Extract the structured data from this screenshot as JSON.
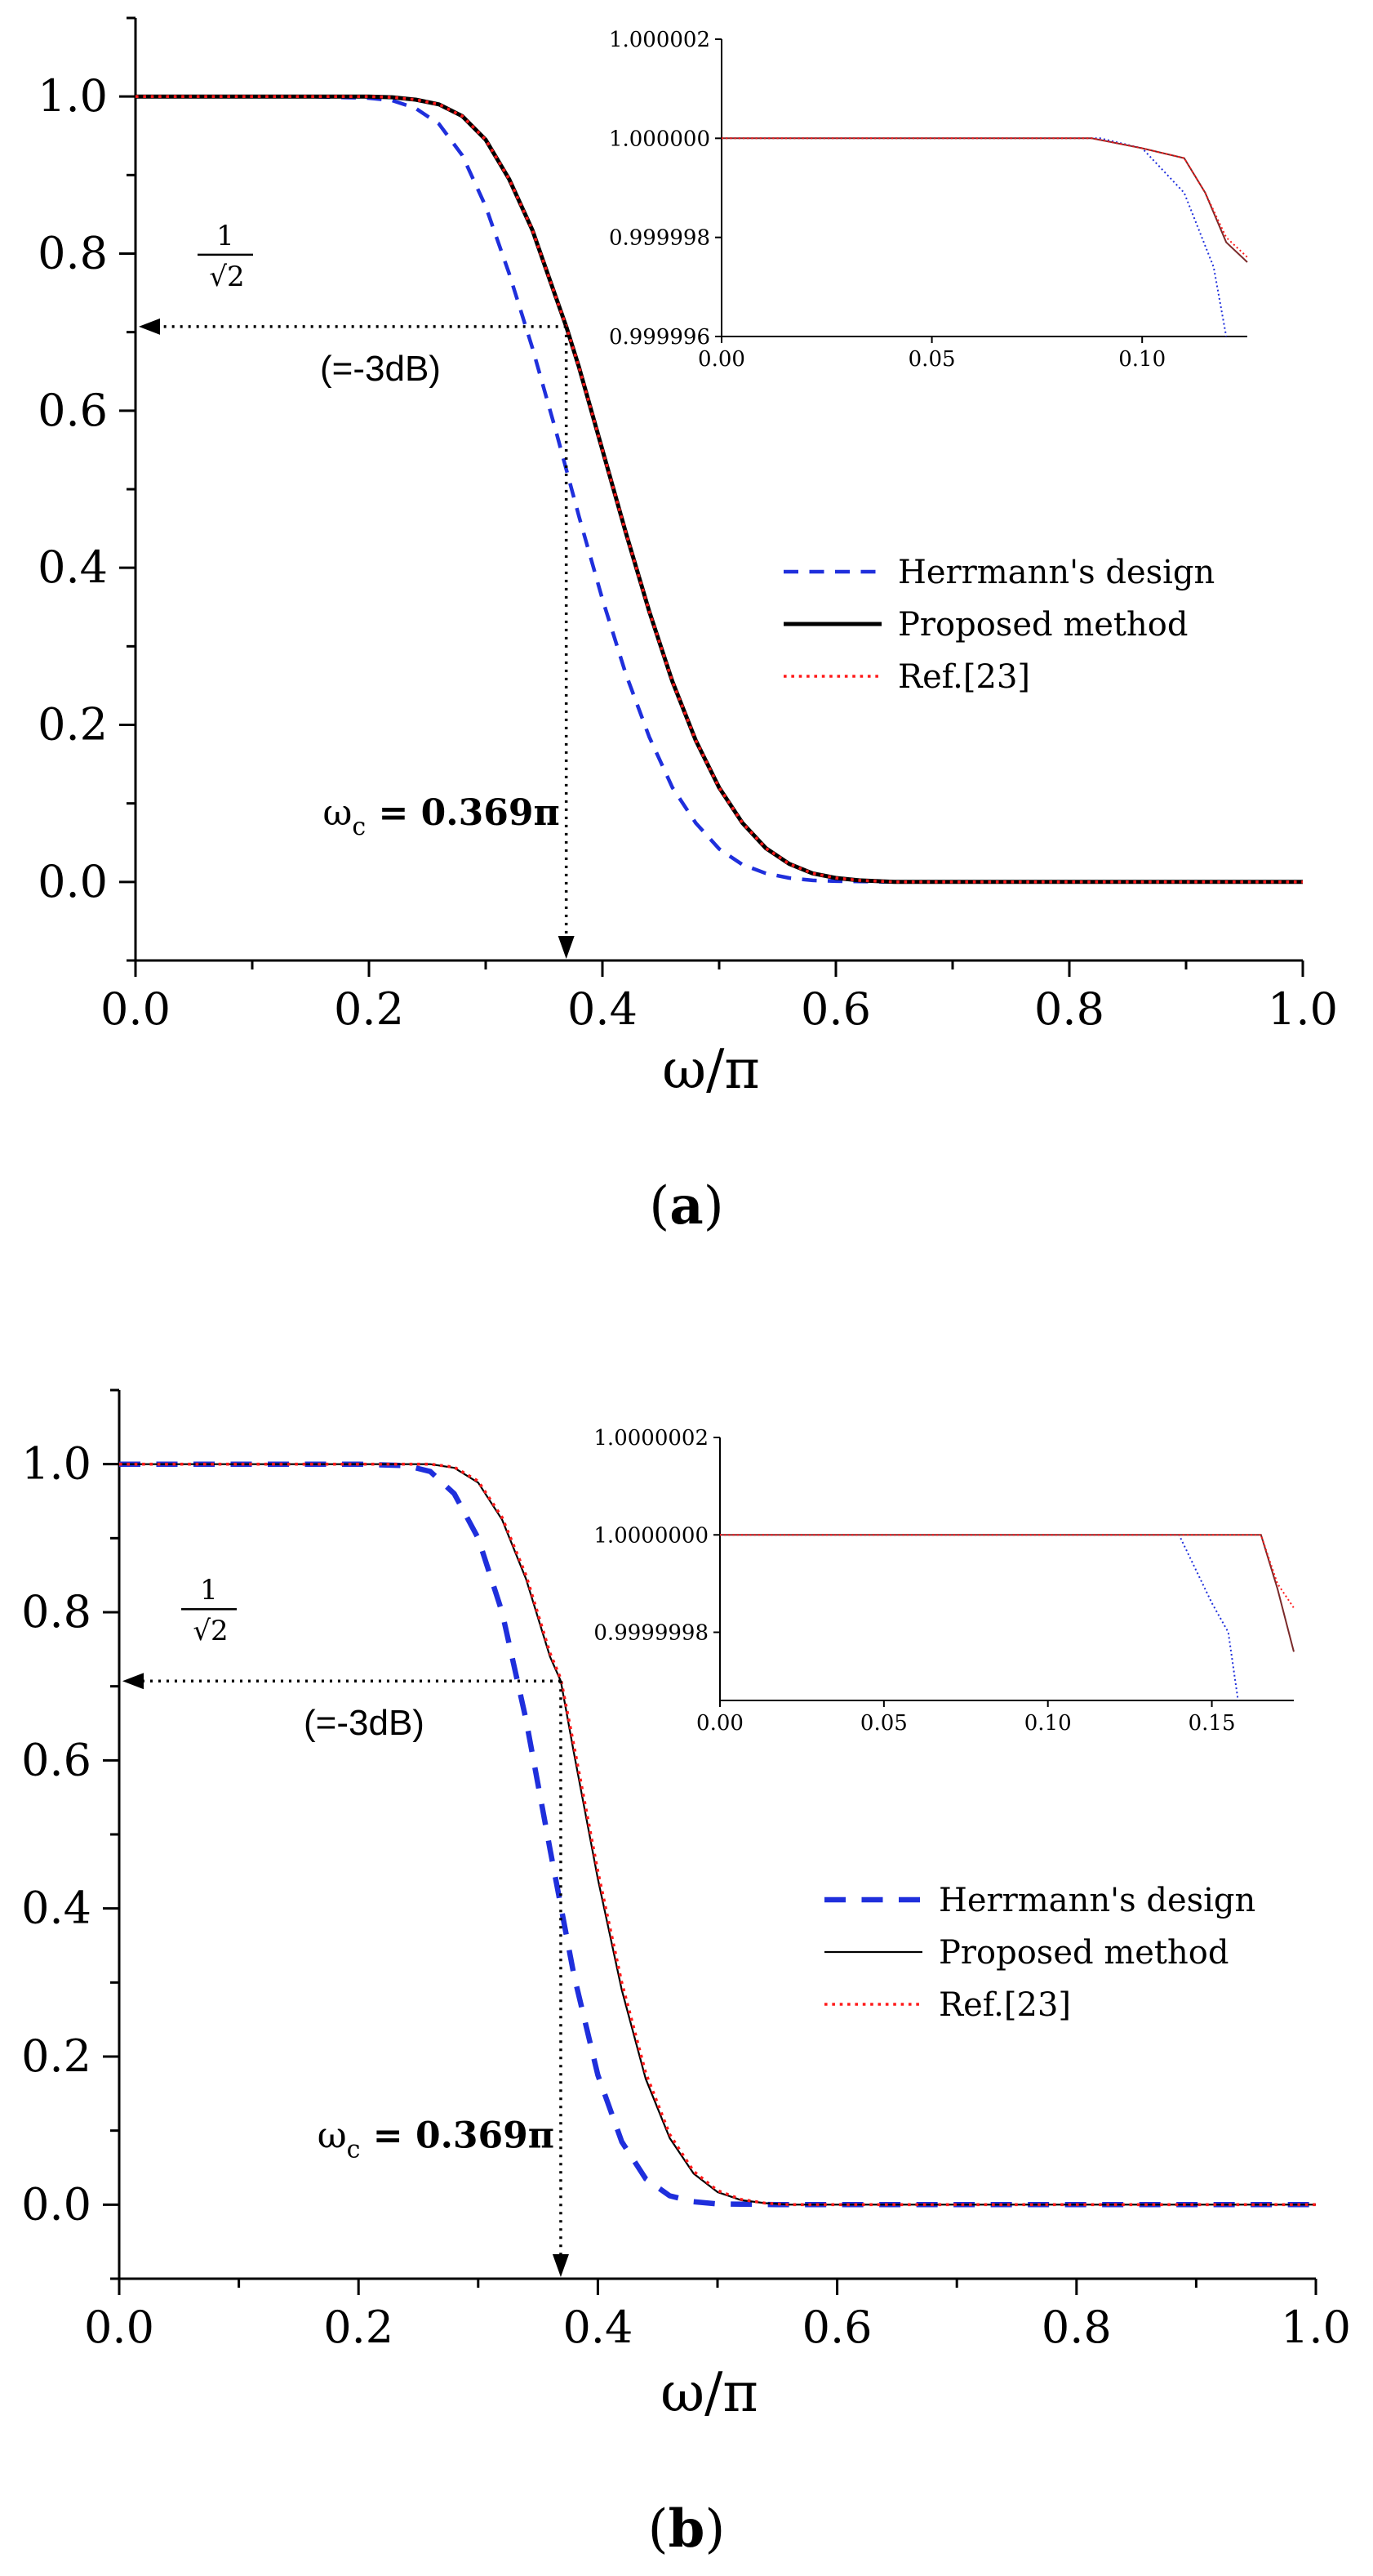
{
  "chart_data": [
    {
      "panel": "a",
      "caption": "a",
      "type": "line",
      "xlabel": "ω/π",
      "ylabel": "",
      "xlim": [
        0,
        1.0
      ],
      "ylim": [
        -0.1,
        1.1
      ],
      "xticks": [
        0.0,
        0.2,
        0.4,
        0.6,
        0.8,
        1.0
      ],
      "yticks": [
        0.0,
        0.2,
        0.4,
        0.6,
        0.8,
        1.0
      ],
      "xtick_labels": [
        "0.0",
        "0.2",
        "0.4",
        "0.6",
        "0.8",
        "1.0"
      ],
      "ytick_labels": [
        "0.0",
        "0.2",
        "0.4",
        "0.6",
        "0.8",
        "1.0"
      ],
      "annotations": {
        "level": 0.7071,
        "cutoff": 0.369,
        "frac_num": "1",
        "frac_den": "√2",
        "db_label": "(=-3dB)",
        "omega_symbol": "ω",
        "omega_sub": "c",
        "omega_value": " = 0.369π"
      },
      "series": [
        {
          "name": "Herrmann's design",
          "color": "#1f2fdc",
          "dash": "dashed",
          "legend_label": "Herrmann's design",
          "x": [
            0,
            0.15,
            0.2,
            0.22,
            0.24,
            0.26,
            0.28,
            0.3,
            0.32,
            0.34,
            0.36,
            0.38,
            0.4,
            0.42,
            0.44,
            0.46,
            0.48,
            0.5,
            0.52,
            0.54,
            0.56,
            0.58,
            0.6,
            0.65,
            0.7,
            1.0
          ],
          "y": [
            1.0,
            1.0,
            0.998,
            0.995,
            0.985,
            0.965,
            0.925,
            0.86,
            0.775,
            0.68,
            0.575,
            0.465,
            0.36,
            0.265,
            0.185,
            0.12,
            0.075,
            0.042,
            0.022,
            0.011,
            0.005,
            0.002,
            0.001,
            0.0,
            0.0,
            0.0
          ]
        },
        {
          "name": "Proposed method",
          "color": "#000000",
          "dash": "solid",
          "legend_label": "Proposed method",
          "x": [
            0,
            0.2,
            0.22,
            0.24,
            0.26,
            0.28,
            0.3,
            0.32,
            0.34,
            0.36,
            0.369,
            0.38,
            0.4,
            0.42,
            0.44,
            0.46,
            0.48,
            0.5,
            0.52,
            0.54,
            0.56,
            0.58,
            0.6,
            0.62,
            0.65,
            0.7,
            1.0
          ],
          "y": [
            1.0,
            1.0,
            0.999,
            0.996,
            0.99,
            0.975,
            0.945,
            0.895,
            0.83,
            0.745,
            0.707,
            0.655,
            0.55,
            0.445,
            0.345,
            0.255,
            0.18,
            0.12,
            0.075,
            0.043,
            0.023,
            0.011,
            0.005,
            0.002,
            0.0,
            0.0,
            0.0
          ]
        },
        {
          "name": "Ref.[23]",
          "color": "#ff1a1a",
          "dash": "dotted",
          "legend_label": "Ref.[23]",
          "x": [
            0,
            0.2,
            0.22,
            0.24,
            0.26,
            0.28,
            0.3,
            0.32,
            0.34,
            0.36,
            0.369,
            0.38,
            0.4,
            0.42,
            0.44,
            0.46,
            0.48,
            0.5,
            0.52,
            0.54,
            0.56,
            0.58,
            0.6,
            0.62,
            0.65,
            0.7,
            1.0
          ],
          "y": [
            1.0,
            1.0,
            0.999,
            0.996,
            0.99,
            0.975,
            0.945,
            0.895,
            0.83,
            0.745,
            0.707,
            0.655,
            0.55,
            0.445,
            0.345,
            0.255,
            0.18,
            0.12,
            0.075,
            0.043,
            0.023,
            0.011,
            0.005,
            0.002,
            0.0,
            0.0,
            0.0
          ]
        }
      ],
      "inset": {
        "xlim": [
          0,
          0.125
        ],
        "ylim": [
          0.999996,
          1.000002
        ],
        "xticks": [
          0.0,
          0.05,
          0.1
        ],
        "xtick_labels": [
          "0.00",
          "0.05",
          "0.10"
        ],
        "yticks": [
          0.999996,
          0.999998,
          1.0,
          1.000002
        ],
        "ytick_labels": [
          "0.999996",
          "0.999998",
          "1.000000",
          "1.000002"
        ],
        "series": [
          {
            "name": "Herrmann's design",
            "color": "#1f2fdc",
            "dash": "dotted",
            "x": [
              0,
              0.09,
              0.1,
              0.11,
              0.117,
              0.12
            ],
            "y": [
              1.0,
              1.0,
              0.9999998,
              0.9999989,
              0.9999974,
              0.999996
            ]
          },
          {
            "name": "Proposed method",
            "color": "#7a2a2a",
            "dash": "solid",
            "x": [
              0,
              0.088,
              0.1,
              0.11,
              0.115,
              0.12,
              0.125
            ],
            "y": [
              1.0,
              1.0,
              0.9999998,
              0.9999996,
              0.9999989,
              0.9999979,
              0.9999975
            ]
          },
          {
            "name": "Ref.[23]",
            "color": "#ff1a1a",
            "dash": "dotted",
            "x": [
              0,
              0.088,
              0.1,
              0.11,
              0.115,
              0.12,
              0.125
            ],
            "y": [
              1.0,
              1.0,
              0.9999998,
              0.9999996,
              0.9999989,
              0.999998,
              0.9999976
            ]
          }
        ]
      }
    },
    {
      "panel": "b",
      "caption": "b",
      "type": "line",
      "xlabel": "ω/π",
      "ylabel": "",
      "xlim": [
        0,
        1.0
      ],
      "ylim": [
        -0.1,
        1.1
      ],
      "xticks": [
        0.0,
        0.2,
        0.4,
        0.6,
        0.8,
        1.0
      ],
      "yticks": [
        0.0,
        0.2,
        0.4,
        0.6,
        0.8,
        1.0
      ],
      "xtick_labels": [
        "0.0",
        "0.2",
        "0.4",
        "0.6",
        "0.8",
        "1.0"
      ],
      "ytick_labels": [
        "0.0",
        "0.2",
        "0.4",
        "0.6",
        "0.8",
        "1.0"
      ],
      "annotations": {
        "level": 0.7071,
        "cutoff": 0.369,
        "frac_num": "1",
        "frac_den": "√2",
        "db_label": "(=-3dB)",
        "omega_symbol": "ω",
        "omega_sub": "c",
        "omega_value": " = 0.369π"
      },
      "series": [
        {
          "name": "Herrmann's design",
          "color": "#1f2fdc",
          "dash": "dashed",
          "legend_label": "Herrmann's design",
          "x": [
            0,
            0.2,
            0.24,
            0.26,
            0.28,
            0.3,
            0.32,
            0.34,
            0.36,
            0.38,
            0.4,
            0.42,
            0.44,
            0.46,
            0.48,
            0.5,
            0.55,
            1.0
          ],
          "y": [
            1.0,
            1.0,
            0.998,
            0.99,
            0.96,
            0.9,
            0.8,
            0.655,
            0.48,
            0.31,
            0.175,
            0.085,
            0.035,
            0.012,
            0.004,
            0.001,
            0.0,
            0.0
          ]
        },
        {
          "name": "Proposed method",
          "color": "#000000",
          "dash": "solid",
          "legend_label": "Proposed method",
          "x": [
            0,
            0.26,
            0.28,
            0.3,
            0.32,
            0.34,
            0.36,
            0.369,
            0.38,
            0.4,
            0.42,
            0.44,
            0.46,
            0.48,
            0.5,
            0.52,
            0.54,
            0.56,
            0.6,
            1.0
          ],
          "y": [
            1.0,
            1.0,
            0.995,
            0.975,
            0.925,
            0.845,
            0.74,
            0.707,
            0.61,
            0.44,
            0.29,
            0.17,
            0.09,
            0.042,
            0.017,
            0.006,
            0.002,
            0.0,
            0.0,
            0.0
          ]
        },
        {
          "name": "Ref.[23]",
          "color": "#ff1a1a",
          "dash": "dotted",
          "legend_label": "Ref.[23]",
          "x": [
            0,
            0.26,
            0.28,
            0.3,
            0.32,
            0.34,
            0.36,
            0.369,
            0.38,
            0.4,
            0.42,
            0.44,
            0.46,
            0.48,
            0.5,
            0.52,
            0.54,
            0.56,
            0.6,
            1.0
          ],
          "y": [
            1.0,
            1.0,
            0.996,
            0.977,
            0.928,
            0.85,
            0.745,
            0.71,
            0.62,
            0.45,
            0.3,
            0.178,
            0.095,
            0.045,
            0.019,
            0.007,
            0.002,
            0.0,
            0.0,
            0.0
          ]
        }
      ],
      "inset": {
        "xlim": [
          0,
          0.175
        ],
        "ylim": [
          0.99999966,
          1.0000002
        ],
        "xticks": [
          0.0,
          0.05,
          0.1,
          0.15
        ],
        "xtick_labels": [
          "0.00",
          "0.05",
          "0.10",
          "0.15"
        ],
        "yticks": [
          0.9999998,
          1.0,
          1.0000002
        ],
        "ytick_labels": [
          "0.9999998",
          "1.0000000",
          "1.0000002"
        ],
        "series": [
          {
            "name": "Herrmann's design",
            "color": "#1f2fdc",
            "dash": "dotted",
            "x": [
              0,
              0.14,
              0.145,
              0.15,
              0.155,
              0.158
            ],
            "y": [
              1.0,
              1.0,
              0.99999993,
              0.99999986,
              0.9999998,
              0.99999966
            ]
          },
          {
            "name": "Proposed method",
            "color": "#7a2a2a",
            "dash": "solid",
            "x": [
              0,
              0.165,
              0.17,
              0.175
            ],
            "y": [
              1.0,
              1.0,
              0.99999989,
              0.99999976
            ]
          },
          {
            "name": "Ref.[23]",
            "color": "#ff1a1a",
            "dash": "dotted",
            "x": [
              0,
              0.165,
              0.17,
              0.175
            ],
            "y": [
              1.0,
              1.0,
              0.9999999,
              0.99999985
            ]
          }
        ]
      }
    }
  ]
}
